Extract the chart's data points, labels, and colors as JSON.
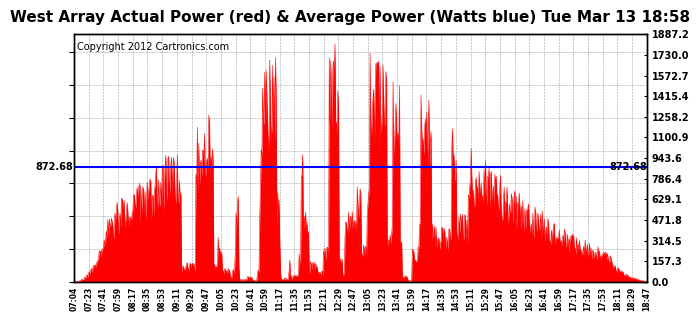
{
  "title": "West Array Actual Power (red) & Average Power (Watts blue) Tue Mar 13 18:58",
  "copyright": "Copyright 2012 Cartronics.com",
  "ymin": 0.0,
  "ymax": 1887.2,
  "yticks": [
    0.0,
    157.3,
    314.5,
    471.8,
    629.1,
    786.4,
    943.6,
    1100.9,
    1258.2,
    1415.4,
    1572.7,
    1730.0,
    1887.2
  ],
  "ytick_labels": [
    "0.0",
    "157.3",
    "314.5",
    "471.8",
    "629.1",
    "786.4",
    "943.6",
    "1100.9",
    "1258.2",
    "1415.4",
    "1572.7",
    "1730.0",
    "1887.2"
  ],
  "average_power": 872.68,
  "average_label": "872.68",
  "xtick_labels": [
    "07:04",
    "07:23",
    "07:41",
    "07:59",
    "08:17",
    "08:35",
    "08:53",
    "09:11",
    "09:29",
    "09:47",
    "10:05",
    "10:23",
    "10:41",
    "10:59",
    "11:17",
    "11:35",
    "11:53",
    "12:11",
    "12:29",
    "12:47",
    "13:05",
    "13:23",
    "13:41",
    "13:59",
    "14:17",
    "14:35",
    "14:53",
    "15:11",
    "15:29",
    "15:47",
    "16:05",
    "16:23",
    "16:41",
    "16:59",
    "17:17",
    "17:35",
    "17:53",
    "18:11",
    "18:29",
    "18:47"
  ],
  "fill_color": "#FF0000",
  "line_color": "#0000FF",
  "bg_color": "#FFFFFF",
  "grid_color": "#888888",
  "title_fontsize": 11,
  "copyright_fontsize": 7
}
